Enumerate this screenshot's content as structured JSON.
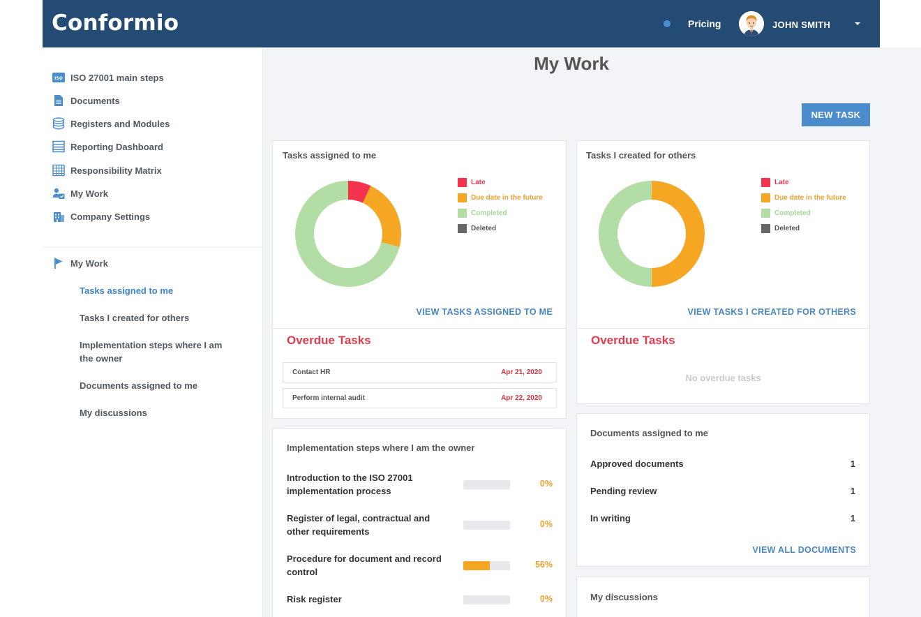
{
  "header": {
    "logo": "Conformio",
    "pricing_label": "Pricing",
    "user_name": "JOHN SMITH"
  },
  "sidebar": {
    "items": [
      {
        "label": "ISO 27001 main steps",
        "icon": "iso-badge-icon"
      },
      {
        "label": "Documents",
        "icon": "document-icon"
      },
      {
        "label": "Registers and Modules",
        "icon": "database-icon"
      },
      {
        "label": "Reporting Dashboard",
        "icon": "dashboard-list-icon"
      },
      {
        "label": "Responsibility Matrix",
        "icon": "grid-icon"
      },
      {
        "label": "My Work",
        "icon": "user-check-icon"
      },
      {
        "label": "Company Settings",
        "icon": "building-icon"
      }
    ],
    "section": {
      "label": "My Work",
      "icon": "flag-icon"
    },
    "subitems": [
      {
        "label": "Tasks assigned to me",
        "active": true
      },
      {
        "label": "Tasks I created for others",
        "active": false
      },
      {
        "label": "Implementation steps where I am the owner",
        "active": false
      },
      {
        "label": "Documents assigned to me",
        "active": false
      },
      {
        "label": "My discussions",
        "active": false
      }
    ]
  },
  "page": {
    "title": "My Work",
    "new_task_label": "NEW TASK"
  },
  "legend": [
    {
      "label": "Late",
      "color": "#f5334f"
    },
    {
      "label": "Due date in the future",
      "color": "#f5a623"
    },
    {
      "label": "Completed",
      "color": "#b2dea6"
    },
    {
      "label": "Deleted",
      "color": "#666666"
    }
  ],
  "tasks_assigned": {
    "title": "Tasks assigned to me",
    "view_link": "VIEW TASKS ASSIGNED TO ME",
    "chart": {
      "late": 7,
      "future": 22,
      "completed": 71,
      "deleted": 0
    },
    "overdue_title": "Overdue Tasks",
    "overdue": [
      {
        "name": "Contact HR",
        "date": "Apr 21, 2020"
      },
      {
        "name": "Perform internal audit",
        "date": "Apr 22, 2020"
      }
    ]
  },
  "tasks_created": {
    "title": "Tasks I created for others",
    "view_link": "VIEW TASKS I CREATED FOR OTHERS",
    "chart": {
      "late": 0,
      "future": 50,
      "completed": 50,
      "deleted": 0
    },
    "overdue_title": "Overdue Tasks",
    "no_overdue": "No overdue tasks"
  },
  "implementation": {
    "title": "Implementation steps where I am the owner",
    "steps": [
      {
        "name": "Introduction to the ISO 27001 implementation process",
        "percent": 0,
        "percent_label": "0%"
      },
      {
        "name": "Register of legal, contractual and other requirements",
        "percent": 0,
        "percent_label": "0%"
      },
      {
        "name": "Procedure for document and record control",
        "percent": 56,
        "percent_label": "56%"
      },
      {
        "name": "Risk register",
        "percent": 0,
        "percent_label": "0%"
      }
    ]
  },
  "documents": {
    "title": "Documents assigned to me",
    "rows": [
      {
        "label": "Approved documents",
        "count": "1"
      },
      {
        "label": "Pending review",
        "count": "1"
      },
      {
        "label": "In writing",
        "count": "1"
      }
    ],
    "view_link": "VIEW ALL DOCUMENTS"
  },
  "discussions": {
    "title": "My discussions"
  }
}
